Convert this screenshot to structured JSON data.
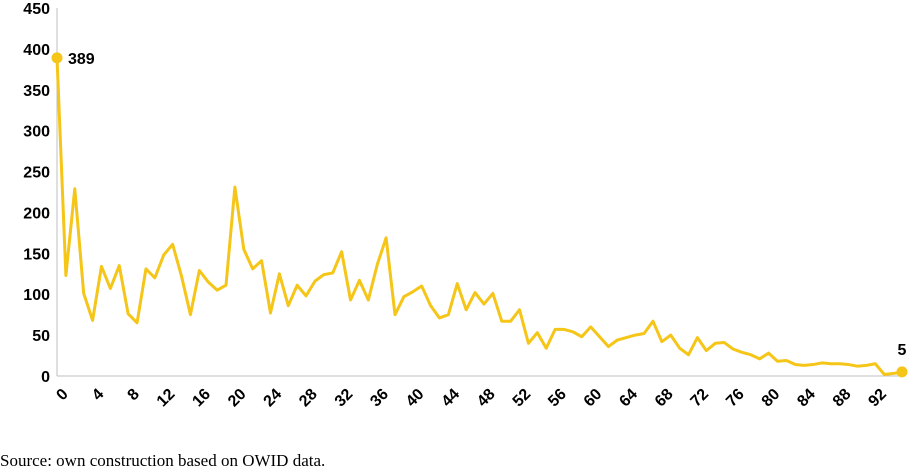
{
  "chart_data": {
    "type": "line",
    "title": "",
    "xlabel": "",
    "ylabel": "",
    "xlim": [
      0,
      95
    ],
    "ylim": [
      0,
      450
    ],
    "y_ticks": [
      0,
      50,
      100,
      150,
      200,
      250,
      300,
      350,
      400,
      450
    ],
    "x_ticks": [
      0,
      4,
      8,
      12,
      16,
      20,
      24,
      28,
      32,
      36,
      40,
      44,
      48,
      52,
      56,
      60,
      64,
      68,
      72,
      76,
      80,
      84,
      88,
      92
    ],
    "grid": false,
    "legend": "none",
    "series": [
      {
        "color": "#F5C518",
        "x": [
          0,
          1,
          2,
          3,
          4,
          5,
          6,
          7,
          8,
          9,
          10,
          11,
          12,
          13,
          14,
          15,
          16,
          17,
          18,
          19,
          20,
          21,
          22,
          23,
          24,
          25,
          26,
          27,
          28,
          29,
          30,
          31,
          32,
          33,
          34,
          35,
          36,
          37,
          38,
          39,
          40,
          41,
          42,
          43,
          44,
          45,
          46,
          47,
          48,
          49,
          50,
          51,
          52,
          53,
          54,
          55,
          56,
          57,
          58,
          59,
          60,
          61,
          62,
          63,
          64,
          65,
          66,
          67,
          68,
          69,
          70,
          71,
          72,
          73,
          74,
          75,
          76,
          77,
          78,
          79,
          80,
          81,
          82,
          83,
          84,
          85,
          86,
          87,
          88,
          89,
          90,
          91,
          92,
          93,
          94,
          95
        ],
        "values": [
          389,
          123,
          229,
          101,
          68,
          134,
          107,
          135,
          76,
          65,
          131,
          120,
          148,
          161,
          122,
          75,
          129,
          115,
          105,
          111,
          231,
          155,
          131,
          141,
          77,
          125,
          86,
          111,
          98,
          116,
          124,
          126,
          152,
          93,
          117,
          93,
          136,
          169,
          75,
          97,
          103,
          110,
          86,
          71,
          75,
          113,
          81,
          102,
          88,
          101,
          67,
          67,
          81,
          40,
          53,
          34,
          57,
          57,
          54,
          48,
          60,
          48,
          36,
          44,
          47,
          50,
          52,
          67,
          42,
          50,
          34,
          26,
          47,
          31,
          40,
          41,
          33,
          29,
          26,
          21,
          28,
          18,
          19,
          14,
          13,
          14,
          16,
          15,
          15,
          14,
          12,
          13,
          15,
          2,
          3,
          5
        ]
      }
    ],
    "annotations": [
      {
        "x": 0,
        "y": 389,
        "label": "389"
      },
      {
        "x": 95,
        "y": 5,
        "label": "5"
      }
    ]
  },
  "source_text": "Source: own construction based on OWID data."
}
